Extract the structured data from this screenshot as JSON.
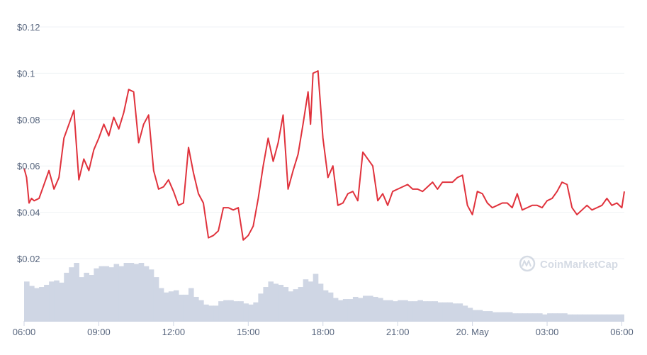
{
  "chart_data": {
    "type": "line",
    "title": "",
    "xlabel": "",
    "ylabel": "",
    "ylim": [
      0.02,
      0.12
    ],
    "y_ticks": [
      {
        "value": 0.02,
        "label": "$0.02"
      },
      {
        "value": 0.04,
        "label": "$0.04"
      },
      {
        "value": 0.06,
        "label": "$0.06"
      },
      {
        "value": 0.08,
        "label": "$0.08"
      },
      {
        "value": 0.1,
        "label": "$0.1"
      },
      {
        "value": 0.12,
        "label": "$0.12"
      }
    ],
    "x_range_hours": [
      6,
      30.1
    ],
    "x_ticks": [
      {
        "value": 6,
        "label": "06:00"
      },
      {
        "value": 9,
        "label": "09:00"
      },
      {
        "value": 12,
        "label": "12:00"
      },
      {
        "value": 15,
        "label": "15:00"
      },
      {
        "value": 18,
        "label": "18:00"
      },
      {
        "value": 21,
        "label": "21:00"
      },
      {
        "value": 24,
        "label": "20. May"
      },
      {
        "value": 27,
        "label": "03:00"
      },
      {
        "value": 30,
        "label": "06:00"
      }
    ],
    "grid": true,
    "series": [
      {
        "role": "price",
        "color": "#e0323c",
        "x": [
          6.0,
          6.1,
          6.2,
          6.3,
          6.4,
          6.6,
          6.8,
          7.0,
          7.2,
          7.4,
          7.6,
          7.8,
          8.0,
          8.2,
          8.4,
          8.6,
          8.8,
          9.0,
          9.2,
          9.4,
          9.6,
          9.8,
          10.0,
          10.2,
          10.4,
          10.6,
          10.8,
          11.0,
          11.2,
          11.4,
          11.6,
          11.8,
          12.0,
          12.2,
          12.4,
          12.6,
          12.8,
          13.0,
          13.2,
          13.4,
          13.6,
          13.8,
          14.0,
          14.2,
          14.4,
          14.6,
          14.8,
          15.0,
          15.2,
          15.4,
          15.6,
          15.8,
          16.0,
          16.2,
          16.4,
          16.6,
          16.8,
          17.0,
          17.2,
          17.4,
          17.5,
          17.6,
          17.8,
          18.0,
          18.2,
          18.4,
          18.6,
          18.8,
          19.0,
          19.2,
          19.4,
          19.6,
          19.8,
          20.0,
          20.2,
          20.4,
          20.6,
          20.8,
          21.0,
          21.2,
          21.4,
          21.6,
          21.8,
          22.0,
          22.2,
          22.4,
          22.6,
          22.8,
          23.0,
          23.2,
          23.4,
          23.6,
          23.8,
          24.0,
          24.2,
          24.4,
          24.6,
          24.8,
          25.0,
          25.2,
          25.4,
          25.6,
          25.8,
          26.0,
          26.2,
          26.4,
          26.6,
          26.8,
          27.0,
          27.2,
          27.4,
          27.6,
          27.8,
          28.0,
          28.2,
          28.4,
          28.6,
          28.8,
          29.0,
          29.2,
          29.4,
          29.6,
          29.8,
          30.0,
          30.1
        ],
        "y": [
          0.059,
          0.055,
          0.044,
          0.046,
          0.045,
          0.046,
          0.052,
          0.058,
          0.05,
          0.055,
          0.072,
          0.078,
          0.084,
          0.054,
          0.063,
          0.058,
          0.067,
          0.072,
          0.078,
          0.073,
          0.081,
          0.076,
          0.083,
          0.093,
          0.092,
          0.07,
          0.078,
          0.082,
          0.058,
          0.05,
          0.051,
          0.054,
          0.049,
          0.043,
          0.044,
          0.068,
          0.057,
          0.048,
          0.044,
          0.029,
          0.03,
          0.032,
          0.042,
          0.042,
          0.041,
          0.042,
          0.028,
          0.03,
          0.034,
          0.046,
          0.06,
          0.072,
          0.062,
          0.07,
          0.082,
          0.05,
          0.058,
          0.065,
          0.078,
          0.092,
          0.078,
          0.1,
          0.101,
          0.072,
          0.055,
          0.06,
          0.043,
          0.044,
          0.048,
          0.049,
          0.045,
          0.066,
          0.063,
          0.06,
          0.045,
          0.048,
          0.043,
          0.049,
          0.05,
          0.051,
          0.052,
          0.05,
          0.05,
          0.049,
          0.051,
          0.053,
          0.05,
          0.053,
          0.053,
          0.053,
          0.055,
          0.056,
          0.043,
          0.039,
          0.049,
          0.048,
          0.044,
          0.042,
          0.043,
          0.044,
          0.044,
          0.042,
          0.048,
          0.041,
          0.042,
          0.043,
          0.043,
          0.042,
          0.045,
          0.046,
          0.049,
          0.053,
          0.052,
          0.042,
          0.039,
          0.041,
          0.043,
          0.041,
          0.042,
          0.043,
          0.046,
          0.043,
          0.044,
          0.042,
          0.049
        ]
      },
      {
        "role": "volume",
        "color": "#cfd6e4",
        "x": [
          6.0,
          6.2,
          6.4,
          6.6,
          6.8,
          7.0,
          7.2,
          7.4,
          7.6,
          7.8,
          8.0,
          8.2,
          8.4,
          8.6,
          8.8,
          9.0,
          9.2,
          9.4,
          9.6,
          9.8,
          10.0,
          10.2,
          10.4,
          10.6,
          10.8,
          11.0,
          11.2,
          11.4,
          11.6,
          11.8,
          12.0,
          12.2,
          12.4,
          12.6,
          12.8,
          13.0,
          13.2,
          13.4,
          13.6,
          13.8,
          14.0,
          14.2,
          14.4,
          14.6,
          14.8,
          15.0,
          15.2,
          15.4,
          15.6,
          15.8,
          16.0,
          16.2,
          16.4,
          16.6,
          16.8,
          17.0,
          17.2,
          17.4,
          17.6,
          17.8,
          18.0,
          18.2,
          18.4,
          18.6,
          18.8,
          19.0,
          19.2,
          19.4,
          19.6,
          19.8,
          20.0,
          20.2,
          20.4,
          20.6,
          20.8,
          21.0,
          21.2,
          21.4,
          21.6,
          21.8,
          22.0,
          22.2,
          22.4,
          22.6,
          22.8,
          23.0,
          23.2,
          23.4,
          23.6,
          23.8,
          24.0,
          24.2,
          24.4,
          24.6,
          24.8,
          25.0,
          25.2,
          25.4,
          25.6,
          25.8,
          26.0,
          26.2,
          26.4,
          26.6,
          26.8,
          27.0,
          27.2,
          27.4,
          27.6,
          27.8,
          28.0,
          28.2,
          28.4,
          28.6,
          28.8,
          29.0,
          29.2,
          29.4,
          29.6,
          29.8,
          30.0
        ],
        "v": [
          0.36,
          0.32,
          0.3,
          0.31,
          0.33,
          0.36,
          0.37,
          0.35,
          0.44,
          0.49,
          0.53,
          0.4,
          0.44,
          0.42,
          0.48,
          0.5,
          0.5,
          0.49,
          0.52,
          0.5,
          0.53,
          0.53,
          0.52,
          0.53,
          0.5,
          0.47,
          0.4,
          0.3,
          0.26,
          0.27,
          0.28,
          0.24,
          0.24,
          0.3,
          0.22,
          0.19,
          0.15,
          0.14,
          0.14,
          0.18,
          0.19,
          0.19,
          0.18,
          0.18,
          0.16,
          0.15,
          0.17,
          0.25,
          0.31,
          0.36,
          0.34,
          0.33,
          0.31,
          0.27,
          0.29,
          0.31,
          0.38,
          0.36,
          0.43,
          0.34,
          0.28,
          0.26,
          0.21,
          0.19,
          0.2,
          0.2,
          0.22,
          0.21,
          0.23,
          0.23,
          0.22,
          0.21,
          0.19,
          0.19,
          0.18,
          0.19,
          0.19,
          0.18,
          0.18,
          0.19,
          0.18,
          0.18,
          0.18,
          0.17,
          0.17,
          0.17,
          0.16,
          0.16,
          0.14,
          0.12,
          0.1,
          0.1,
          0.09,
          0.09,
          0.08,
          0.08,
          0.08,
          0.08,
          0.07,
          0.07,
          0.07,
          0.07,
          0.07,
          0.07,
          0.06,
          0.07,
          0.07,
          0.07,
          0.07,
          0.06,
          0.06,
          0.06,
          0.06,
          0.06,
          0.06,
          0.06,
          0.06,
          0.06,
          0.06,
          0.06,
          0.06
        ]
      }
    ]
  },
  "colors": {
    "price_line": "#e0323c",
    "volume_fill": "#cfd6e4",
    "grid": "#eff2f5",
    "axis": "#cfd6e4",
    "tick_text": "#58667e",
    "watermark": "#c8cfdc"
  },
  "watermark": {
    "text": "CoinMarketCap",
    "icon": "coinmarketcap-logo-icon"
  }
}
